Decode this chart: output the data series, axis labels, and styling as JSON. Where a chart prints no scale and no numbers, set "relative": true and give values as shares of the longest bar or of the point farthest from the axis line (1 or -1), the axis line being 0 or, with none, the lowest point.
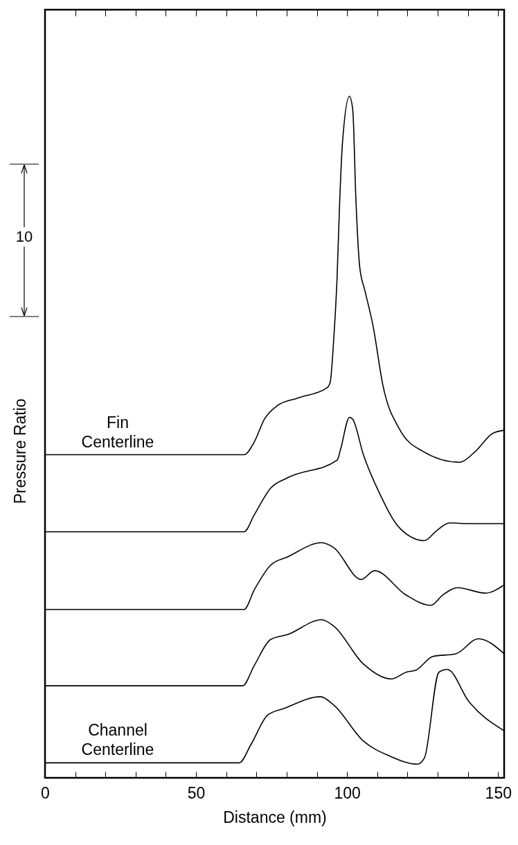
{
  "chart_data": {
    "type": "line",
    "xlabel": "Distance (mm)",
    "ylabel": "Pressure Ratio",
    "relative": true,
    "xlim": [
      0,
      152
    ],
    "xticks": [
      0,
      {
        "value": 10,
        "label": null
      },
      {
        "value": 20,
        "label": null
      },
      {
        "value": 30,
        "label": null
      },
      {
        "value": 40,
        "label": null
      },
      50,
      {
        "value": 60,
        "label": null
      },
      {
        "value": 70,
        "label": null
      },
      {
        "value": 80,
        "label": null
      },
      {
        "value": 90,
        "label": null
      },
      100,
      {
        "value": 110,
        "label": null
      },
      {
        "value": 120,
        "label": null
      },
      {
        "value": 130,
        "label": null
      },
      {
        "value": 140,
        "label": null
      },
      150
    ],
    "annotations": [
      "10"
    ],
    "series": [
      {
        "name": "Fin Centerline",
        "color": "#000000",
        "x": [
          0,
          65.9,
          69.3,
          72.6,
          76.9,
          83.5,
          93.3,
          94.4,
          95.5,
          96.7,
          97.6,
          98.5,
          100.8,
          101.9,
          102.9,
          104.2,
          105.9,
          108.6,
          111.9,
          117.3,
          125.1,
          137.1,
          142.5,
          148.1,
          152
        ],
        "values": [
          0.474,
          0.474,
          0.493,
          0.526,
          0.546,
          0.557,
          0.572,
          0.58,
          0.638,
          0.735,
          0.851,
          0.933,
          1.0,
          0.979,
          0.851,
          0.749,
          0.715,
          0.663,
          0.575,
          0.512,
          0.479,
          0.463,
          0.479,
          0.505,
          0.51
        ]
      },
      {
        "color": "#000000",
        "x": [
          0,
          65.9,
          69.3,
          74.7,
          80.2,
          96.7,
          97.9,
          100.8,
          101.9,
          105.4,
          110.9,
          117.3,
          125.6,
          129.5,
          133.9,
          140.3,
          152
        ],
        "values": [
          0.361,
          0.361,
          0.386,
          0.425,
          0.44,
          0.466,
          0.483,
          0.529,
          0.526,
          0.474,
          0.416,
          0.367,
          0.348,
          0.362,
          0.374,
          0.373,
          0.373
        ]
      },
      {
        "color": "#000000",
        "x": [
          0,
          65.9,
          69.3,
          74.7,
          80.2,
          91.6,
          95.5,
          104.7,
          109.1,
          119.6,
          127.7,
          131.6,
          136.6,
          145.8,
          152
        ],
        "values": [
          0.247,
          0.247,
          0.276,
          0.312,
          0.324,
          0.345,
          0.338,
          0.291,
          0.304,
          0.268,
          0.253,
          0.268,
          0.279,
          0.271,
          0.283
        ]
      },
      {
        "color": "#000000",
        "x": [
          0,
          65.4,
          69.3,
          74.7,
          80.2,
          91.6,
          95.5,
          105.4,
          114.6,
          119.6,
          122.8,
          128.4,
          136.0,
          143.5,
          152
        ],
        "values": [
          0.135,
          0.135,
          0.165,
          0.203,
          0.21,
          0.232,
          0.223,
          0.167,
          0.145,
          0.155,
          0.158,
          0.178,
          0.182,
          0.204,
          0.182
        ]
      },
      {
        "name": "Channel Centerline",
        "color": "#000000",
        "x": [
          0,
          64.3,
          68.2,
          73.7,
          79.2,
          91.2,
          95.5,
          105.4,
          114.1,
          123.3,
          125.6,
          130.4,
          133.2,
          140.3,
          152
        ],
        "values": [
          0.022,
          0.022,
          0.049,
          0.092,
          0.102,
          0.119,
          0.107,
          0.054,
          0.032,
          0.02,
          0.029,
          0.155,
          0.159,
          0.112,
          0.069
        ]
      }
    ]
  }
}
